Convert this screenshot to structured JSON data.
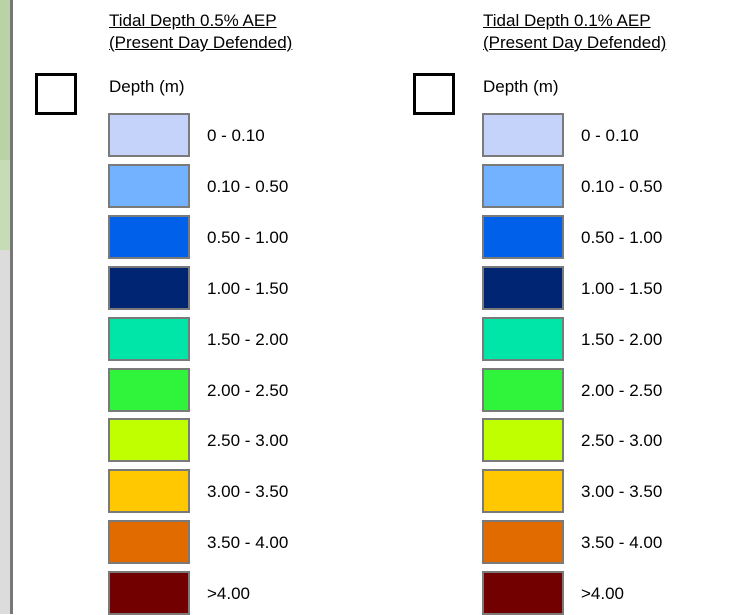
{
  "panels": [
    {
      "title_line1": "Tidal Depth 0.5% AEP",
      "title_line2": "(Present Day Defended)",
      "depth_label": "Depth (m)",
      "classes": [
        {
          "label": "0 - 0.10",
          "color": "#c5d3fb"
        },
        {
          "label": "0.10 - 0.50",
          "color": "#73b2ff"
        },
        {
          "label": "0.50 - 1.00",
          "color": "#0060ea"
        },
        {
          "label": "1.00 - 1.50",
          "color": "#002673"
        },
        {
          "label": "1.50 - 2.00",
          "color": "#00e6a9"
        },
        {
          "label": "2.00 - 2.50",
          "color": "#2ff43b"
        },
        {
          "label": "2.50 - 3.00",
          "color": "#c0ff00"
        },
        {
          "label": "3.00 - 3.50",
          "color": "#ffc800"
        },
        {
          "label": "3.50 - 4.00",
          "color": "#e26b00"
        },
        {
          "label": ">4.00",
          "color": "#730000"
        }
      ]
    },
    {
      "title_line1": "Tidal Depth 0.1% AEP",
      "title_line2": "(Present Day Defended)",
      "depth_label": "Depth (m)",
      "classes": [
        {
          "label": "0 - 0.10",
          "color": "#c5d3fb"
        },
        {
          "label": "0.10 - 0.50",
          "color": "#73b2ff"
        },
        {
          "label": "0.50 - 1.00",
          "color": "#0060ea"
        },
        {
          "label": "1.00 - 1.50",
          "color": "#002673"
        },
        {
          "label": "1.50 - 2.00",
          "color": "#00e6a9"
        },
        {
          "label": "2.00 - 2.50",
          "color": "#2ff43b"
        },
        {
          "label": "2.50 - 3.00",
          "color": "#c0ff00"
        },
        {
          "label": "3.00 - 3.50",
          "color": "#ffc800"
        },
        {
          "label": "3.50 - 4.00",
          "color": "#e26b00"
        },
        {
          "label": ">4.00",
          "color": "#730000"
        }
      ]
    }
  ]
}
